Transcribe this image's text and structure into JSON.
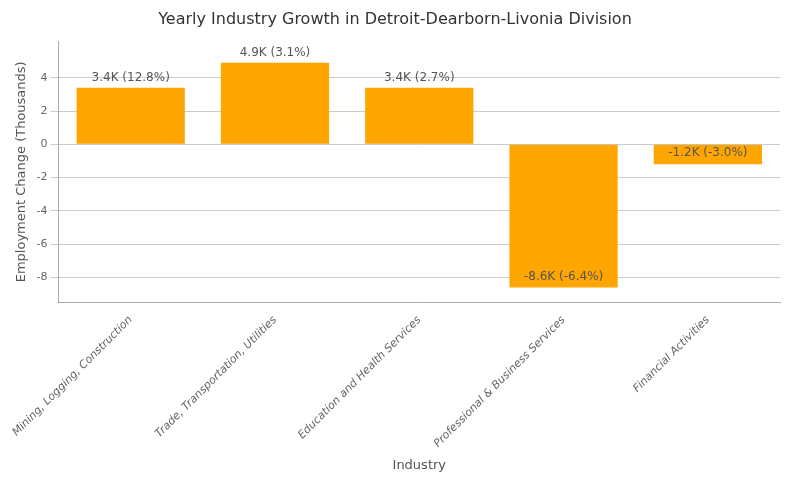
{
  "chart_data": {
    "type": "bar",
    "title": "Yearly Industry Growth in Detroit-Dearborn-Livonia Division",
    "xlabel": "Industry",
    "ylabel": "Employment Change (Thousands)",
    "categories": [
      "Mining, Logging, Construction",
      "Trade, Transportation, Utilities",
      "Education and Health Services",
      "Professional & Business Services",
      "Financial Activities"
    ],
    "values": [
      3.4,
      4.9,
      3.4,
      -8.6,
      -1.2
    ],
    "value_labels": [
      "3.4K (12.8%)",
      "4.9K (3.1%)",
      "3.4K (2.7%)",
      "-8.6K (-6.4%)",
      "-1.2K (-3.0%)"
    ],
    "color": "#FFA500",
    "ylim": [
      -9.5,
      6.2
    ],
    "yticks": [
      -8,
      -6,
      -4,
      -2,
      0,
      2,
      4
    ],
    "grid": true
  }
}
